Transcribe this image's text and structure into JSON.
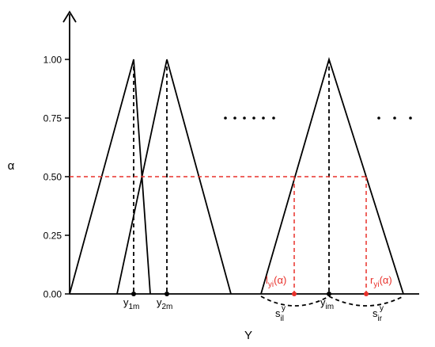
{
  "chart_data": {
    "type": "fuzzy-triangles",
    "xlabel": "Y",
    "ylabel": "α",
    "ylim": [
      0,
      1.2
    ],
    "yticks": [
      {
        "value": 0,
        "label": "0.00"
      },
      {
        "value": 0.25,
        "label": "0.25"
      },
      {
        "value": 0.5,
        "label": "0.50"
      },
      {
        "value": 0.75,
        "label": "0.75"
      },
      {
        "value": 1,
        "label": "1.00"
      }
    ],
    "alpha_cut": 0.5,
    "annotations": {
      "y1m": {
        "base": "y",
        "sub": "1m"
      },
      "y2m": {
        "base": "y",
        "sub": "2m"
      },
      "yim": {
        "base": "y",
        "sub": "im"
      },
      "sil": {
        "base": "s",
        "sub": "il",
        "sup": "y"
      },
      "sir": {
        "base": "s",
        "sub": "ir",
        "sup": "y"
      },
      "left": {
        "base": "l",
        "sub": "yi",
        "rest": "(α)"
      },
      "right": {
        "base": "r",
        "sub": "yi",
        "rest": "(α)"
      }
    }
  }
}
